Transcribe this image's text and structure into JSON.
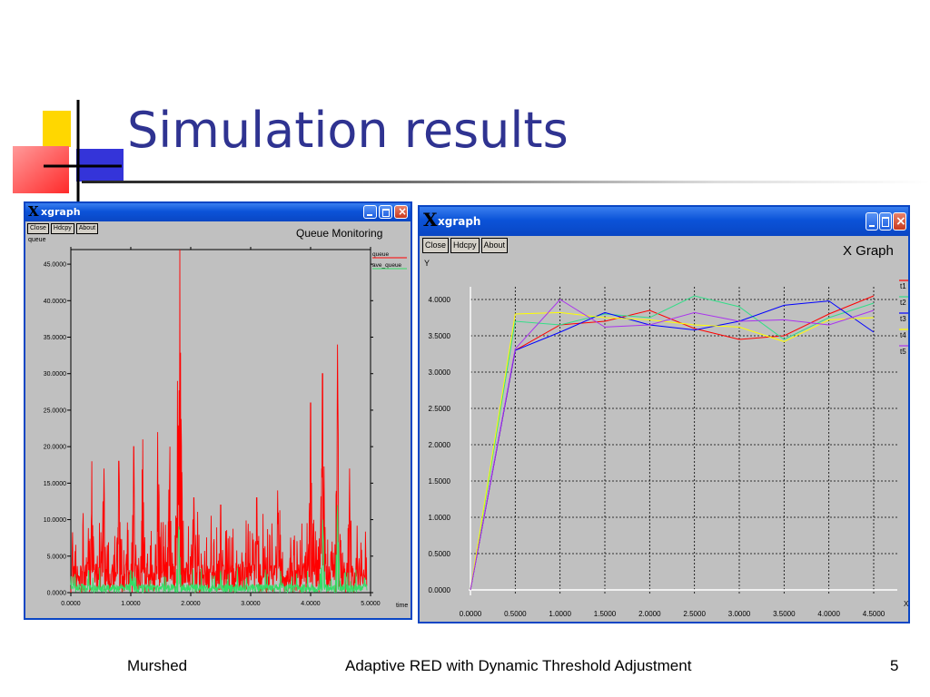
{
  "slide": {
    "title": "Simulation results",
    "footer": {
      "author": "Murshed",
      "topic": "Adaptive RED with Dynamic Threshold Adjustment",
      "page": "5"
    }
  },
  "colors": {
    "title": "#2f3391",
    "xp_title_bar": "#0b53d8",
    "window_bg": "#c0c0c0",
    "deco_yellow": "#ffd700",
    "deco_blue": "#3434d9",
    "deco_red": "#ff3b3b"
  },
  "left_window": {
    "app_title": "xgraph",
    "buttons": [
      "Close",
      "Hdcpy",
      "About"
    ],
    "plot_title": "Queue Monitoring",
    "y_name": "queue",
    "x_name": "time",
    "legend": [
      {
        "name": "queue",
        "color": "#ff0000"
      },
      {
        "name": "ave_queue",
        "color": "#33dd66"
      }
    ]
  },
  "right_window": {
    "app_title": "xgraph",
    "buttons": [
      "Close",
      "Hdcpy",
      "About"
    ],
    "plot_title": "X Graph",
    "y_name": "Y",
    "x_name": "X",
    "legend": [
      {
        "name": "t1",
        "color": "#ff0000"
      },
      {
        "name": "t2",
        "color": "#33dd88"
      },
      {
        "name": "t3",
        "color": "#0000ff"
      },
      {
        "name": "t4",
        "color": "#ffff00"
      },
      {
        "name": "t5",
        "color": "#aa33ee"
      }
    ]
  },
  "chart_data": [
    {
      "type": "line",
      "title": "Queue Monitoring",
      "xlabel": "time",
      "ylabel": "queue",
      "xlim": [
        0,
        5
      ],
      "ylim": [
        0,
        47
      ],
      "x_ticks": [
        "0.0000",
        "1.0000",
        "2.0000",
        "3.0000",
        "4.0000",
        "5.0000"
      ],
      "y_ticks": [
        "0.0000",
        "5.0000",
        "10.0000",
        "15.0000",
        "20.0000",
        "25.0000",
        "30.0000",
        "35.0000",
        "40.0000",
        "45.0000"
      ],
      "grid": false,
      "legend_position": "top-right",
      "series": [
        {
          "name": "queue",
          "color": "#ff0000",
          "peaks": [
            [
              0.35,
              18
            ],
            [
              0.55,
              17
            ],
            [
              0.8,
              18
            ],
            [
              1.05,
              20
            ],
            [
              1.2,
              21
            ],
            [
              1.45,
              22
            ],
            [
              1.65,
              20
            ],
            [
              1.78,
              29
            ],
            [
              1.82,
              47
            ],
            [
              2.05,
              13
            ],
            [
              2.5,
              12
            ],
            [
              3.1,
              13
            ],
            [
              3.45,
              14
            ],
            [
              4.0,
              26
            ],
            [
              4.2,
              30
            ],
            [
              4.45,
              34
            ],
            [
              4.65,
              17
            ],
            [
              4.92,
              6
            ]
          ]
        },
        {
          "name": "ave_queue",
          "color": "#33dd66",
          "peaks": [
            [
              0.3,
              3
            ],
            [
              1.0,
              3
            ],
            [
              1.8,
              9
            ],
            [
              2.5,
              3
            ],
            [
              3.5,
              3
            ],
            [
              4.2,
              10
            ],
            [
              4.45,
              12
            ],
            [
              4.9,
              2
            ]
          ]
        }
      ]
    },
    {
      "type": "line",
      "title": "X Graph",
      "xlabel": "X",
      "ylabel": "Y",
      "xlim": [
        0,
        4.5
      ],
      "ylim": [
        0,
        4
      ],
      "x_ticks": [
        "0.0000",
        "0.5000",
        "1.0000",
        "1.5000",
        "2.0000",
        "2.5000",
        "3.0000",
        "3.5000",
        "4.0000",
        "4.5000"
      ],
      "y_ticks": [
        "0.0000",
        "0.5000",
        "1.0000",
        "1.5000",
        "2.0000",
        "2.5000",
        "3.0000",
        "3.5000",
        "4.0000"
      ],
      "grid": true,
      "legend_position": "right",
      "x": [
        0,
        0.5,
        1.0,
        1.5,
        2.0,
        2.5,
        3.0,
        3.5,
        4.0,
        4.5
      ],
      "series": [
        {
          "name": "t1",
          "color": "#ff0000",
          "values": [
            0,
            3.3,
            3.65,
            3.7,
            3.85,
            3.6,
            3.45,
            3.5,
            3.8,
            4.05
          ]
        },
        {
          "name": "t2",
          "color": "#33dd88",
          "values": [
            0,
            3.7,
            3.65,
            3.8,
            3.75,
            4.05,
            3.9,
            3.45,
            3.75,
            3.95
          ]
        },
        {
          "name": "t3",
          "color": "#0000ff",
          "values": [
            0,
            3.3,
            3.55,
            3.82,
            3.65,
            3.58,
            3.7,
            3.92,
            3.98,
            3.55
          ]
        },
        {
          "name": "t4",
          "color": "#ffff00",
          "values": [
            0,
            3.8,
            3.82,
            3.75,
            3.72,
            3.65,
            3.62,
            3.42,
            3.72,
            3.75
          ]
        },
        {
          "name": "t5",
          "color": "#aa33ee",
          "values": [
            0,
            3.32,
            4.0,
            3.62,
            3.65,
            3.82,
            3.7,
            3.72,
            3.65,
            3.85
          ]
        }
      ]
    }
  ]
}
